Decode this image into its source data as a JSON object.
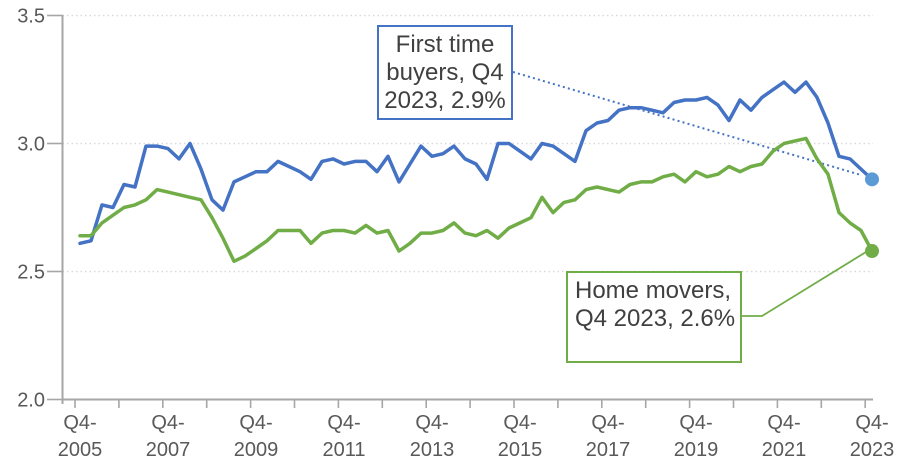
{
  "chart_data": {
    "type": "line",
    "title": "",
    "xlabel": "",
    "ylabel": "",
    "ylim": [
      2.0,
      3.5
    ],
    "x_frequency": "quarterly",
    "x_range": [
      "Q4-2005",
      "Q4-2023"
    ],
    "grid": "horizontal-dotted",
    "legend_position": "none (inline annotation callouts)",
    "y_ticks": [
      {
        "label": "3.5",
        "value": 3.5
      },
      {
        "label": "3.0",
        "value": 3.0
      },
      {
        "label": "2.5",
        "value": 2.5
      },
      {
        "label": "2.0",
        "value": 2.0
      }
    ],
    "x_major_tick_labels": [
      {
        "line1": "Q4-",
        "line2": "2005"
      },
      {
        "line1": "Q4-",
        "line2": "2007"
      },
      {
        "line1": "Q4-",
        "line2": "2009"
      },
      {
        "line1": "Q4-",
        "line2": "2011"
      },
      {
        "line1": "Q4-",
        "line2": "2013"
      },
      {
        "line1": "Q4-",
        "line2": "2015"
      },
      {
        "line1": "Q4-",
        "line2": "2017"
      },
      {
        "line1": "Q4-",
        "line2": "2019"
      },
      {
        "line1": "Q4-",
        "line2": "2021"
      },
      {
        "line1": "Q4-",
        "line2": "2023"
      }
    ],
    "x_minor_tick_years": [
      2005,
      2006,
      2007,
      2008,
      2009,
      2010,
      2011,
      2012,
      2013,
      2014,
      2015,
      2016,
      2017,
      2018,
      2019,
      2020,
      2021,
      2022,
      2023
    ],
    "series": [
      {
        "name": "First time buyers",
        "color": "#4472C4",
        "marker_color": "#5B9BD5",
        "end_marker": true,
        "end_value": "2.9%",
        "values": [
          2.61,
          2.62,
          2.76,
          2.75,
          2.84,
          2.83,
          2.99,
          2.99,
          2.98,
          2.94,
          3.0,
          2.9,
          2.78,
          2.74,
          2.85,
          2.87,
          2.89,
          2.89,
          2.93,
          2.91,
          2.89,
          2.86,
          2.93,
          2.94,
          2.92,
          2.93,
          2.93,
          2.89,
          2.95,
          2.85,
          2.92,
          2.99,
          2.95,
          2.96,
          2.99,
          2.94,
          2.92,
          2.86,
          3.0,
          3.0,
          2.97,
          2.94,
          3.0,
          2.99,
          2.96,
          2.93,
          3.05,
          3.08,
          3.09,
          3.13,
          3.14,
          3.14,
          3.13,
          3.12,
          3.16,
          3.17,
          3.17,
          3.18,
          3.15,
          3.09,
          3.17,
          3.13,
          3.18,
          3.21,
          3.24,
          3.2,
          3.24,
          3.18,
          3.08,
          2.95,
          2.94,
          2.9,
          2.86
        ]
      },
      {
        "name": "Home movers",
        "color": "#70AD47",
        "marker_color": "#70AD47",
        "end_marker": true,
        "end_value": "2.6%",
        "values": [
          2.64,
          2.64,
          2.69,
          2.72,
          2.75,
          2.76,
          2.78,
          2.82,
          2.81,
          2.8,
          2.79,
          2.78,
          2.71,
          2.63,
          2.54,
          2.56,
          2.59,
          2.62,
          2.66,
          2.66,
          2.66,
          2.61,
          2.65,
          2.66,
          2.66,
          2.65,
          2.68,
          2.65,
          2.66,
          2.58,
          2.61,
          2.65,
          2.65,
          2.66,
          2.69,
          2.65,
          2.64,
          2.66,
          2.63,
          2.67,
          2.69,
          2.71,
          2.79,
          2.73,
          2.77,
          2.78,
          2.82,
          2.83,
          2.82,
          2.81,
          2.84,
          2.85,
          2.85,
          2.87,
          2.88,
          2.85,
          2.89,
          2.87,
          2.88,
          2.91,
          2.89,
          2.91,
          2.92,
          2.97,
          3.0,
          3.01,
          3.02,
          2.94,
          2.88,
          2.73,
          2.69,
          2.66,
          2.58
        ]
      }
    ],
    "annotations": [
      {
        "id": "ftb",
        "lines": [
          "First time",
          "buyers, Q4",
          "2023, 2.9%"
        ],
        "border_color": "#4472C4",
        "leader_style": "dotted"
      },
      {
        "id": "hm",
        "lines": [
          "Home movers,",
          "Q4 2023, 2.6%"
        ],
        "border_color": "#70AD47",
        "leader_style": "solid"
      }
    ],
    "colors": {
      "background": "#ffffff",
      "axis_line": "#A6A6A6",
      "gridline": "#D9D9D9",
      "tick_label_text": "#595959",
      "annotation_text": "#404040"
    }
  }
}
